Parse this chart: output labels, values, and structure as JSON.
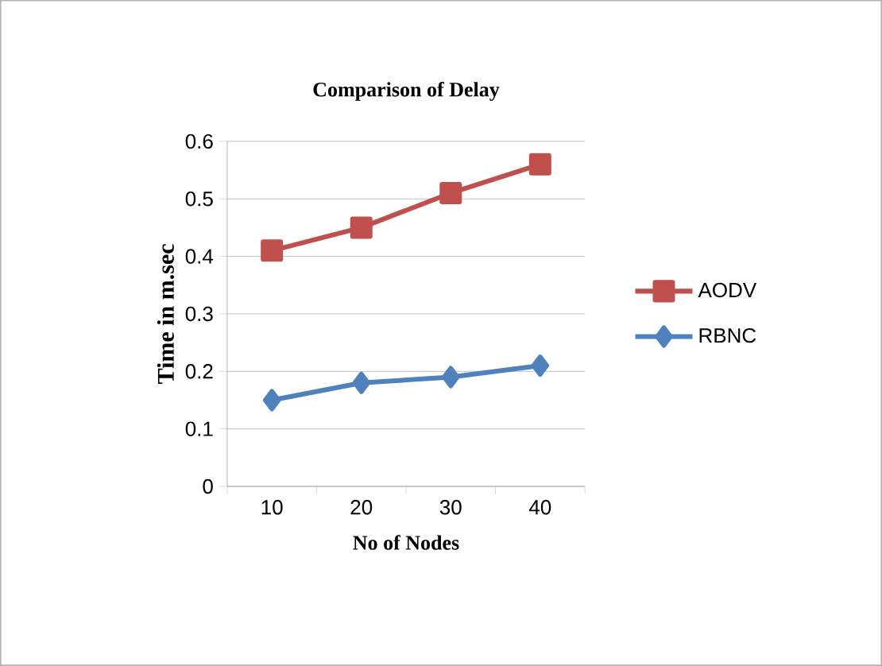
{
  "chart_data": {
    "type": "line",
    "title": "Comparison of Delay",
    "xlabel": "No of Nodes",
    "ylabel": "Time in m.sec",
    "categories": [
      "10",
      "20",
      "30",
      "40"
    ],
    "series": [
      {
        "name": "AODV",
        "color": "#c0504d",
        "marker": "square",
        "values": [
          0.41,
          0.45,
          0.51,
          0.56
        ]
      },
      {
        "name": "RBNC",
        "color": "#4f81bd",
        "marker": "diamond",
        "values": [
          0.15,
          0.18,
          0.19,
          0.21
        ]
      }
    ],
    "ylim": [
      0,
      0.6
    ],
    "yticks": [
      0,
      0.1,
      0.2,
      0.3,
      0.4,
      0.5,
      0.6
    ],
    "grid": "y",
    "legend": "right"
  }
}
